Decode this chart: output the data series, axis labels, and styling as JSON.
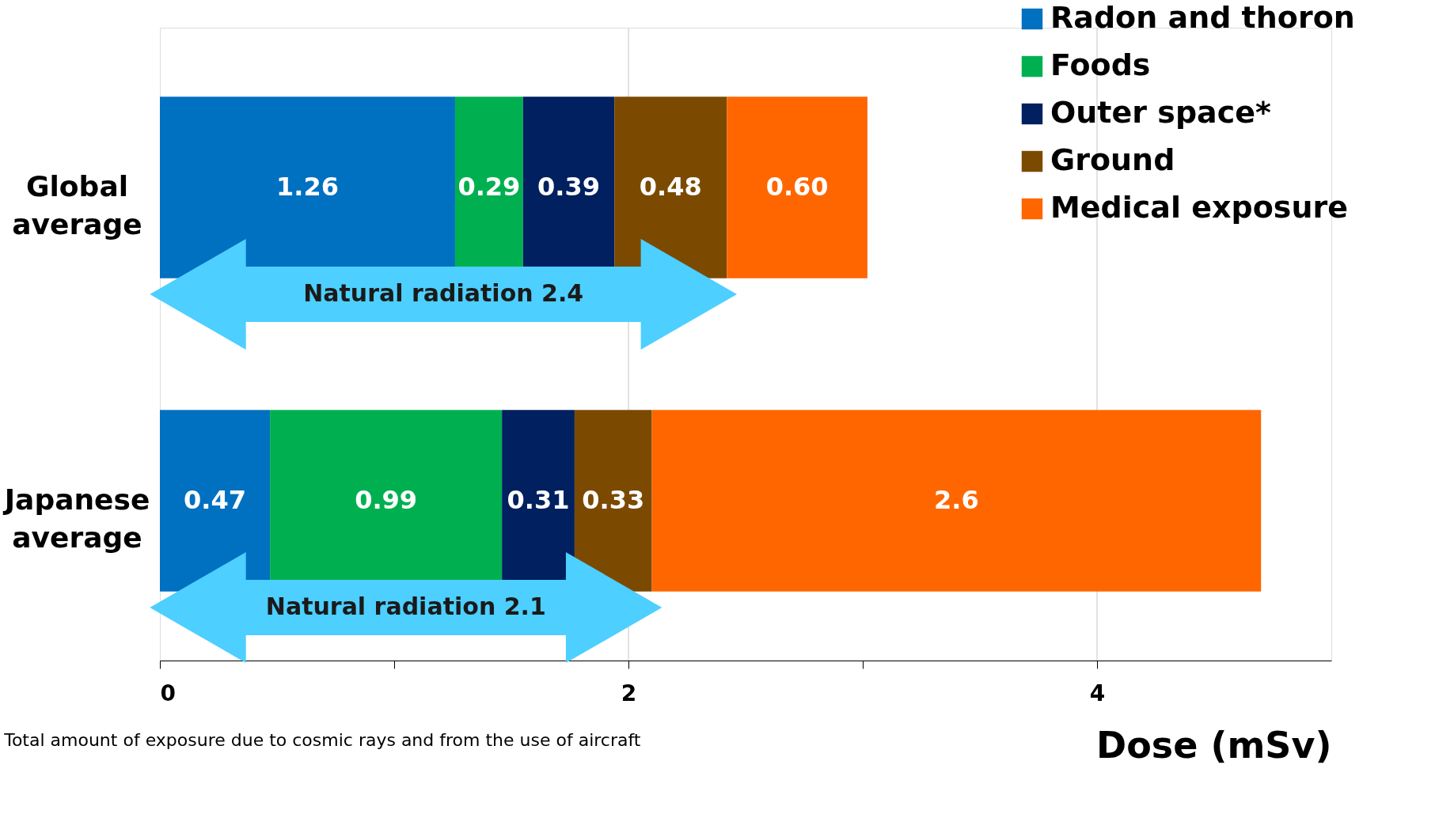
{
  "chart_data": {
    "type": "bar",
    "orientation": "horizontal",
    "stacked": true,
    "xlabel": "Dose (mSv)",
    "categories": [
      "Global average",
      "Japanese average"
    ],
    "series": [
      {
        "name": "Radon and thoron",
        "color": "#0070c0",
        "values": [
          1.26,
          0.47
        ],
        "value_labels": [
          "1.26",
          "0.47"
        ]
      },
      {
        "name": "Foods",
        "color": "#00b050",
        "values": [
          0.29,
          0.99
        ],
        "value_labels": [
          "0.29",
          "0.99"
        ]
      },
      {
        "name": "Outer space*",
        "color": "#002060",
        "values": [
          0.39,
          0.31
        ],
        "value_labels": [
          "0.39",
          "0.31"
        ]
      },
      {
        "name": "Ground",
        "color": "#7b4a00",
        "values": [
          0.48,
          0.33
        ],
        "value_labels": [
          "0.48",
          "0.33"
        ]
      },
      {
        "name": "Medical exposure",
        "color": "#ff6600",
        "values": [
          0.6,
          2.6
        ],
        "value_labels": [
          "0.60",
          "2.6"
        ]
      }
    ],
    "xlim": [
      0,
      5
    ],
    "xticks": [
      0,
      {
        "value": 1,
        "label": null
      },
      2,
      {
        "value": 3,
        "label": null
      },
      4
    ],
    "grid": "x",
    "legend": "top right",
    "annotations": [
      "Natural radiation  2.4",
      "Natural radiation  2.1",
      "Total amount of exposure due to cosmic rays and from the use of aircraft"
    ]
  }
}
